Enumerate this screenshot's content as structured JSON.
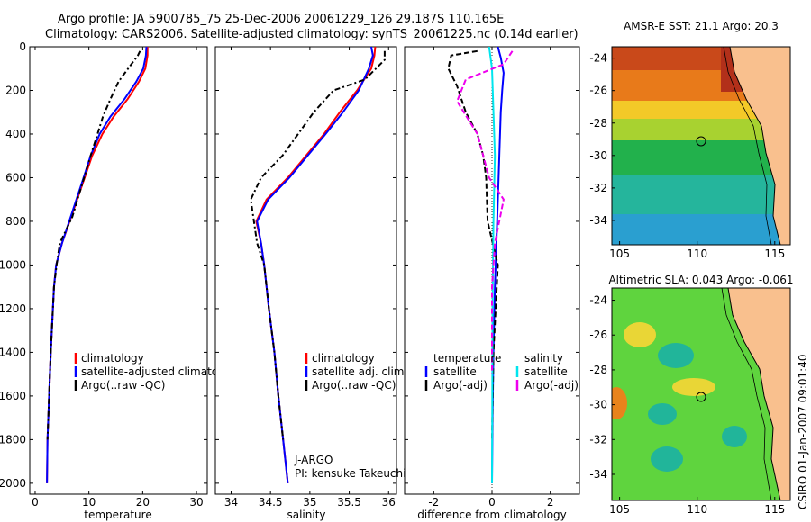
{
  "header": {
    "line1": "Argo profile: JA 5900785_75 25-Dec-2006 20061229_126 29.187S 110.165E",
    "line2": "Climatology: CARS2006. Satellite-adjusted climatology: synTS_20061225.nc (0.14d earlier)"
  },
  "colors": {
    "climatology": "#ff0000",
    "satellite": "#0000ff",
    "argo": "#000000",
    "salinity_satellite": "#00e5ee",
    "salinity_argo": "#ee00ee"
  },
  "chart_data": [
    {
      "type": "line",
      "xlabel": "temperature",
      "xlim": [
        -1,
        32
      ],
      "ylim": [
        0,
        2050
      ],
      "yaxis_reversed": true,
      "xticks": [
        0,
        10,
        20,
        30
      ],
      "yticks": [
        0,
        200,
        400,
        600,
        800,
        1000,
        1200,
        1400,
        1600,
        1800,
        2000
      ],
      "legend": [
        "climatology",
        "satellite-adjusted climatology",
        "Argo(..raw -QC)"
      ],
      "series": [
        {
          "name": "climatology",
          "color": "#ff0000",
          "x": [
            20.9,
            20.9,
            20.5,
            19.3,
            17.2,
            14.6,
            12.5,
            10.6,
            9.2,
            6.7,
            5.0,
            3.9,
            3.5,
            2.9,
            2.6,
            2.3,
            2.2
          ],
          "y": [
            0,
            40,
            100,
            160,
            240,
            320,
            400,
            500,
            600,
            780,
            900,
            1000,
            1100,
            1400,
            1600,
            1800,
            2000
          ]
        },
        {
          "name": "satellite-adjusted climatology",
          "color": "#0000ff",
          "x": [
            20.7,
            20.6,
            20.1,
            18.8,
            16.6,
            14.0,
            12.0,
            10.3,
            9.0,
            6.6,
            5.0,
            3.9,
            3.5,
            2.9,
            2.6,
            2.3,
            2.2
          ],
          "y": [
            0,
            40,
            100,
            160,
            240,
            320,
            400,
            500,
            600,
            780,
            900,
            1000,
            1100,
            1400,
            1600,
            1800,
            2000
          ]
        },
        {
          "name": "Argo(..raw -QC)",
          "color": "#000000",
          "x": [
            19.5,
            19.1,
            17.3,
            15.5,
            14.0,
            12.6,
            11.6,
            10.3,
            9.1,
            6.9,
            4.6,
            4.0,
            3.5,
            2.9,
            2.6,
            2.3
          ],
          "y": [
            20,
            40,
            100,
            160,
            240,
            320,
            400,
            500,
            600,
            780,
            900,
            1000,
            1100,
            1400,
            1600,
            1800
          ]
        }
      ]
    },
    {
      "type": "line",
      "xlabel": "salinity",
      "xlim": [
        33.8,
        36.1
      ],
      "ylim": [
        0,
        2050
      ],
      "yaxis_reversed": true,
      "xticks": [
        34,
        34.5,
        35,
        35.5,
        36
      ],
      "legend": [
        "climatology",
        "satellite adj. clim.",
        "Argo(..raw -QC)"
      ],
      "annotations": [
        "J-ARGO",
        "PI: kensuke Takeuchi"
      ],
      "series": [
        {
          "name": "climatology",
          "color": "#ff0000",
          "x": [
            35.83,
            35.82,
            35.78,
            35.6,
            35.38,
            35.18,
            34.95,
            34.72,
            34.45,
            34.32,
            34.38,
            34.42,
            34.48,
            34.55,
            34.6,
            34.66,
            34.72
          ],
          "y": [
            0,
            40,
            100,
            200,
            300,
            400,
            500,
            600,
            700,
            800,
            900,
            1000,
            1200,
            1400,
            1600,
            1800,
            2000
          ]
        },
        {
          "name": "satellite adj. clim.",
          "color": "#0000ff",
          "x": [
            35.78,
            35.8,
            35.75,
            35.62,
            35.42,
            35.2,
            34.97,
            34.74,
            34.47,
            34.33,
            34.38,
            34.42,
            34.48,
            34.55,
            34.6,
            34.66,
            34.72
          ],
          "y": [
            0,
            40,
            100,
            200,
            300,
            400,
            500,
            600,
            700,
            800,
            900,
            1000,
            1200,
            1400,
            1600,
            1800,
            2000
          ]
        },
        {
          "name": "Argo(..raw -QC)",
          "color": "#000000",
          "x": [
            35.95,
            35.95,
            35.7,
            35.3,
            35.05,
            34.85,
            34.65,
            34.38,
            34.25,
            34.33,
            34.42,
            34.48,
            34.55,
            34.6,
            34.66
          ],
          "y": [
            20,
            60,
            150,
            200,
            300,
            400,
            500,
            600,
            700,
            900,
            1000,
            1200,
            1400,
            1600,
            1800
          ]
        }
      ]
    },
    {
      "type": "line",
      "xlabel": "difference from climatology",
      "xlim": [
        -3,
        3
      ],
      "ylim": [
        0,
        2050
      ],
      "yaxis_reversed": true,
      "xticks": [
        -2,
        0,
        2
      ],
      "legend": {
        "temperature": {
          "title": "temperature",
          "items": [
            "satellite",
            "Argo(-adj)"
          ]
        },
        "salinity": {
          "title": "salinity",
          "items": [
            "satellite",
            "Argo(-adj)"
          ]
        }
      },
      "series": [
        {
          "name": "temperature satellite",
          "color": "#0000ff",
          "x": [
            0.2,
            0.3,
            0.4,
            0.35,
            0.3,
            0.25,
            0.2,
            0.15,
            0.1,
            0.05,
            0.02,
            0.0
          ],
          "y": [
            0,
            50,
            120,
            200,
            300,
            500,
            700,
            900,
            1100,
            1400,
            1700,
            2000
          ]
        },
        {
          "name": "temperature Argo(-adj)",
          "color": "#000000",
          "x": [
            -0.5,
            -1.4,
            -1.5,
            -1.2,
            -0.9,
            -0.5,
            -0.3,
            -0.2,
            -0.15,
            0.2,
            0.05,
            0.0
          ],
          "y": [
            20,
            40,
            100,
            180,
            300,
            400,
            500,
            600,
            800,
            1000,
            1400,
            1800
          ]
        },
        {
          "name": "salinity satellite",
          "color": "#00e5ee",
          "x": [
            -0.1,
            0.0,
            0.05,
            0.1,
            0.05,
            0.02,
            0.01,
            0.0
          ],
          "y": [
            0,
            100,
            300,
            500,
            800,
            1200,
            1600,
            2000
          ]
        },
        {
          "name": "salinity Argo(-adj)",
          "color": "#ee00ee",
          "x": [
            0.7,
            0.4,
            -0.9,
            -1.2,
            -0.5,
            -0.1,
            0.4,
            0.1,
            0.0,
            0.0
          ],
          "y": [
            20,
            80,
            150,
            250,
            400,
            600,
            700,
            900,
            1100,
            1500
          ]
        }
      ]
    }
  ],
  "maps": [
    {
      "type": "heatmap",
      "title": "AMSR-E SST: 21.1 Argo: 20.3",
      "xticks": [
        105,
        110,
        115
      ],
      "yticks": [
        -24,
        -26,
        -28,
        -30,
        -32,
        -34
      ],
      "xlim": [
        104.5,
        116
      ],
      "ylim": [
        -35.5,
        -23.3
      ]
    },
    {
      "type": "heatmap",
      "title": "Altimetric SLA: 0.043 Argo: -0.061",
      "xticks": [
        105,
        110,
        115
      ],
      "yticks": [
        -24,
        -26,
        -28,
        -30,
        -32,
        -34
      ],
      "xlim": [
        104.5,
        116
      ],
      "ylim": [
        -35.5,
        -23.3
      ]
    }
  ],
  "float_position": {
    "lon": 110.165,
    "lat": -29.187
  },
  "credit": "CSIRO 01-Jan-2007 09:01:40"
}
